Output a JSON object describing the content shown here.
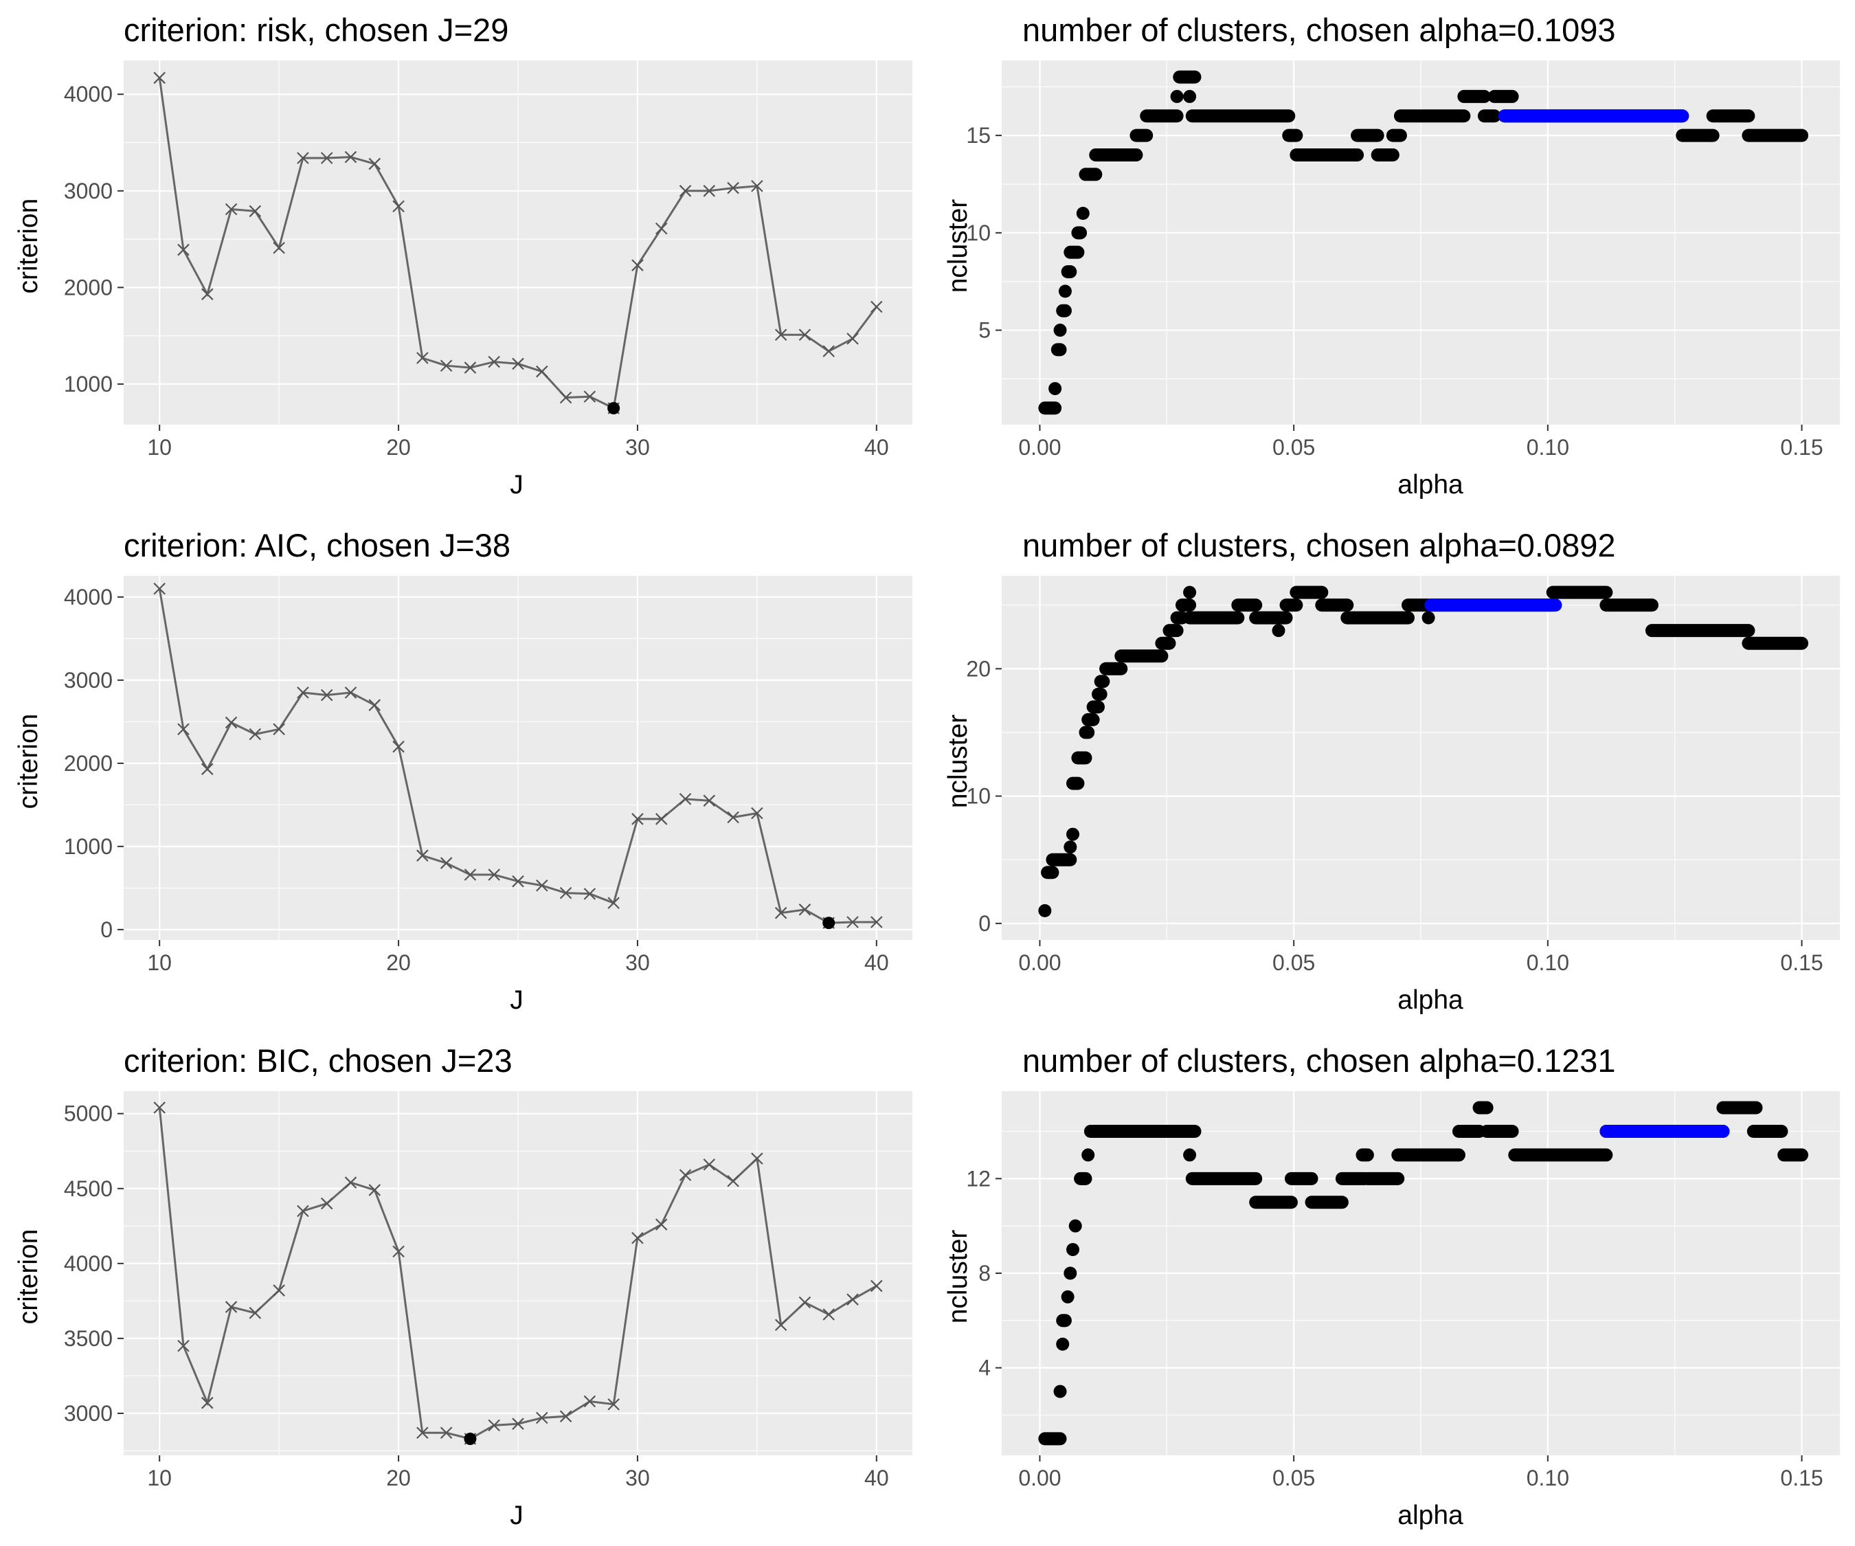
{
  "chart_data": [
    {
      "id": "risk",
      "type": "line",
      "title": "criterion: risk, chosen J=29",
      "xlabel": "J",
      "ylabel": "criterion",
      "xlim": [
        8.5,
        41.5
      ],
      "ylim": [
        580,
        4350
      ],
      "xticks": [
        10,
        20,
        30,
        40
      ],
      "yticks": [
        1000,
        2000,
        3000,
        4000
      ],
      "x": [
        10,
        11,
        12,
        13,
        14,
        15,
        16,
        17,
        18,
        19,
        20,
        21,
        22,
        23,
        24,
        25,
        26,
        27,
        28,
        29,
        30,
        31,
        32,
        33,
        34,
        35,
        36,
        37,
        38,
        39,
        40
      ],
      "y": [
        4170,
        2390,
        1930,
        2810,
        2790,
        2410,
        3340,
        3340,
        3350,
        3280,
        2840,
        1270,
        1190,
        1170,
        1230,
        1210,
        1130,
        860,
        870,
        750,
        2230,
        2610,
        3000,
        3000,
        3030,
        3050,
        1510,
        1510,
        1340,
        1470,
        1800
      ],
      "chosen": {
        "x": 29,
        "y": 750
      }
    },
    {
      "id": "alpha-risk",
      "type": "scatter",
      "title": "number of clusters, chosen alpha=0.1093",
      "xlabel": "alpha",
      "ylabel": "ncluster",
      "xlim": [
        -0.0075,
        0.1575
      ],
      "ylim": [
        0.15,
        18.85
      ],
      "xticks": [
        0.0,
        0.05,
        0.1,
        0.15
      ],
      "xtick_labels": [
        "0.00",
        "0.05",
        "0.10",
        "0.15"
      ],
      "yticks": [
        5,
        10,
        15
      ],
      "steps": [
        [
          0.001,
          0.003,
          1
        ],
        [
          0.003,
          0.003,
          2
        ],
        [
          0.0035,
          0.004,
          4
        ],
        [
          0.004,
          0.004,
          5
        ],
        [
          0.0045,
          0.005,
          6
        ],
        [
          0.005,
          0.005,
          7
        ],
        [
          0.0055,
          0.006,
          8
        ],
        [
          0.006,
          0.0075,
          9
        ],
        [
          0.0075,
          0.008,
          10
        ],
        [
          0.0085,
          0.0085,
          11
        ],
        [
          0.009,
          0.011,
          13
        ],
        [
          0.011,
          0.019,
          14
        ],
        [
          0.019,
          0.021,
          15
        ],
        [
          0.021,
          0.027,
          16
        ],
        [
          0.027,
          0.027,
          17
        ],
        [
          0.0275,
          0.0305,
          18
        ],
        [
          0.0295,
          0.0295,
          17
        ],
        [
          0.03,
          0.049,
          16
        ],
        [
          0.049,
          0.0505,
          15
        ],
        [
          0.0505,
          0.0625,
          14
        ],
        [
          0.0625,
          0.0665,
          15
        ],
        [
          0.0665,
          0.0695,
          14
        ],
        [
          0.0695,
          0.071,
          15
        ],
        [
          0.071,
          0.0835,
          16
        ],
        [
          0.0835,
          0.0875,
          17
        ],
        [
          0.0875,
          0.0895,
          16
        ],
        [
          0.0895,
          0.093,
          17
        ],
        [
          0.0915,
          0.1265,
          16
        ],
        [
          0.1265,
          0.1325,
          15
        ],
        [
          0.1325,
          0.1395,
          16
        ],
        [
          0.1395,
          0.15,
          15
        ]
      ],
      "chosen_range": {
        "x": [
          0.0915,
          0.1265
        ],
        "y": 16
      },
      "colors": {
        "points": "#000000",
        "chosen": "#0000ff"
      }
    },
    {
      "id": "aic",
      "type": "line",
      "title": "criterion: AIC, chosen J=38",
      "xlabel": "J",
      "ylabel": "criterion",
      "xlim": [
        8.5,
        41.5
      ],
      "ylim": [
        -125,
        4255
      ],
      "xticks": [
        10,
        20,
        30,
        40
      ],
      "yticks": [
        0,
        1000,
        2000,
        3000,
        4000
      ],
      "x": [
        10,
        11,
        12,
        13,
        14,
        15,
        16,
        17,
        18,
        19,
        20,
        21,
        22,
        23,
        24,
        25,
        26,
        27,
        28,
        29,
        30,
        31,
        32,
        33,
        34,
        35,
        36,
        37,
        38,
        39,
        40
      ],
      "y": [
        4100,
        2410,
        1930,
        2490,
        2350,
        2410,
        2850,
        2820,
        2850,
        2700,
        2200,
        890,
        800,
        660,
        660,
        580,
        530,
        440,
        430,
        320,
        1330,
        1330,
        1570,
        1550,
        1350,
        1400,
        200,
        240,
        80,
        90,
        90
      ],
      "chosen": {
        "x": 38,
        "y": 80
      }
    },
    {
      "id": "alpha-aic",
      "type": "scatter",
      "title": "number of clusters, chosen alpha=0.0892",
      "xlabel": "alpha",
      "ylabel": "ncluster",
      "xlim": [
        -0.0075,
        0.1575
      ],
      "ylim": [
        -1.3,
        27.3
      ],
      "xticks": [
        0.0,
        0.05,
        0.1,
        0.15
      ],
      "xtick_labels": [
        "0.00",
        "0.05",
        "0.10",
        "0.15"
      ],
      "yticks": [
        0,
        10,
        20
      ],
      "steps": [
        [
          0.001,
          0.001,
          1
        ],
        [
          0.0015,
          0.0025,
          4
        ],
        [
          0.0025,
          0.006,
          5
        ],
        [
          0.006,
          0.006,
          6
        ],
        [
          0.0065,
          0.0065,
          7
        ],
        [
          0.0065,
          0.0075,
          11
        ],
        [
          0.0075,
          0.009,
          13
        ],
        [
          0.009,
          0.0095,
          15
        ],
        [
          0.0095,
          0.0105,
          16
        ],
        [
          0.0105,
          0.0115,
          17
        ],
        [
          0.0115,
          0.012,
          18
        ],
        [
          0.012,
          0.0125,
          19
        ],
        [
          0.013,
          0.016,
          20
        ],
        [
          0.016,
          0.024,
          21
        ],
        [
          0.024,
          0.0255,
          22
        ],
        [
          0.0255,
          0.027,
          23
        ],
        [
          0.027,
          0.028,
          24
        ],
        [
          0.028,
          0.0295,
          25
        ],
        [
          0.0295,
          0.0295,
          26
        ],
        [
          0.0295,
          0.039,
          24
        ],
        [
          0.039,
          0.0425,
          25
        ],
        [
          0.0425,
          0.0485,
          24
        ],
        [
          0.047,
          0.047,
          23
        ],
        [
          0.0485,
          0.0505,
          25
        ],
        [
          0.0505,
          0.0555,
          26
        ],
        [
          0.0555,
          0.0605,
          25
        ],
        [
          0.0605,
          0.0725,
          24
        ],
        [
          0.0725,
          0.0765,
          25
        ],
        [
          0.0765,
          0.0765,
          24
        ],
        [
          0.077,
          0.101,
          25
        ],
        [
          0.101,
          0.1115,
          26
        ],
        [
          0.1115,
          0.1205,
          25
        ],
        [
          0.1205,
          0.1395,
          23
        ],
        [
          0.1395,
          0.15,
          22
        ]
      ],
      "chosen_range": {
        "x": [
          0.077,
          0.1015
        ],
        "y": 25
      },
      "colors": {
        "points": "#000000",
        "chosen": "#0000ff"
      }
    },
    {
      "id": "bic",
      "type": "line",
      "title": "criterion: BIC, chosen J=23",
      "xlabel": "J",
      "ylabel": "criterion",
      "xlim": [
        8.5,
        41.5
      ],
      "ylim": [
        2720,
        5150
      ],
      "xticks": [
        10,
        20,
        30,
        40
      ],
      "yticks": [
        3000,
        3500,
        4000,
        4500,
        5000
      ],
      "x": [
        10,
        11,
        12,
        13,
        14,
        15,
        16,
        17,
        18,
        19,
        20,
        21,
        22,
        23,
        24,
        25,
        26,
        27,
        28,
        29,
        30,
        31,
        32,
        33,
        34,
        35,
        36,
        37,
        38,
        39,
        40
      ],
      "y": [
        5040,
        3450,
        3070,
        3710,
        3670,
        3820,
        4350,
        4400,
        4540,
        4490,
        4080,
        2870,
        2870,
        2830,
        2920,
        2930,
        2970,
        2980,
        3080,
        3060,
        4170,
        4260,
        4590,
        4660,
        4550,
        4700,
        3590,
        3740,
        3660,
        3760,
        3850
      ],
      "chosen": {
        "x": 23,
        "y": 2830
      }
    },
    {
      "id": "alpha-bic",
      "type": "scatter",
      "title": "number of clusters, chosen alpha=0.1231",
      "xlabel": "alpha",
      "ylabel": "ncluster",
      "xlim": [
        -0.0075,
        0.1575
      ],
      "ylim": [
        0.3,
        15.7
      ],
      "xticks": [
        0.0,
        0.05,
        0.1,
        0.15
      ],
      "xtick_labels": [
        "0.00",
        "0.05",
        "0.10",
        "0.15"
      ],
      "yticks": [
        4,
        8,
        12
      ],
      "steps": [
        [
          0.001,
          0.004,
          1
        ],
        [
          0.004,
          0.004,
          3
        ],
        [
          0.0045,
          0.0045,
          5
        ],
        [
          0.0045,
          0.005,
          6
        ],
        [
          0.0055,
          0.0055,
          7
        ],
        [
          0.006,
          0.006,
          8
        ],
        [
          0.0065,
          0.0065,
          9
        ],
        [
          0.007,
          0.007,
          10
        ],
        [
          0.008,
          0.009,
          12
        ],
        [
          0.0095,
          0.0095,
          13
        ],
        [
          0.01,
          0.0305,
          14
        ],
        [
          0.0295,
          0.0295,
          13
        ],
        [
          0.03,
          0.0425,
          12
        ],
        [
          0.0425,
          0.0495,
          11
        ],
        [
          0.0495,
          0.0535,
          12
        ],
        [
          0.0535,
          0.0595,
          11
        ],
        [
          0.0595,
          0.064,
          12
        ],
        [
          0.0635,
          0.0645,
          13
        ],
        [
          0.0645,
          0.0705,
          12
        ],
        [
          0.0705,
          0.0825,
          13
        ],
        [
          0.0825,
          0.0865,
          14
        ],
        [
          0.0865,
          0.088,
          15
        ],
        [
          0.088,
          0.093,
          14
        ],
        [
          0.0935,
          0.1115,
          13
        ],
        [
          0.1115,
          0.1345,
          14
        ],
        [
          0.1345,
          0.141,
          15
        ],
        [
          0.1405,
          0.146,
          14
        ],
        [
          0.1465,
          0.15,
          13
        ]
      ],
      "chosen_range": {
        "x": [
          0.1115,
          0.1345
        ],
        "y": 14
      },
      "colors": {
        "points": "#000000",
        "chosen": "#0000ff"
      }
    }
  ]
}
